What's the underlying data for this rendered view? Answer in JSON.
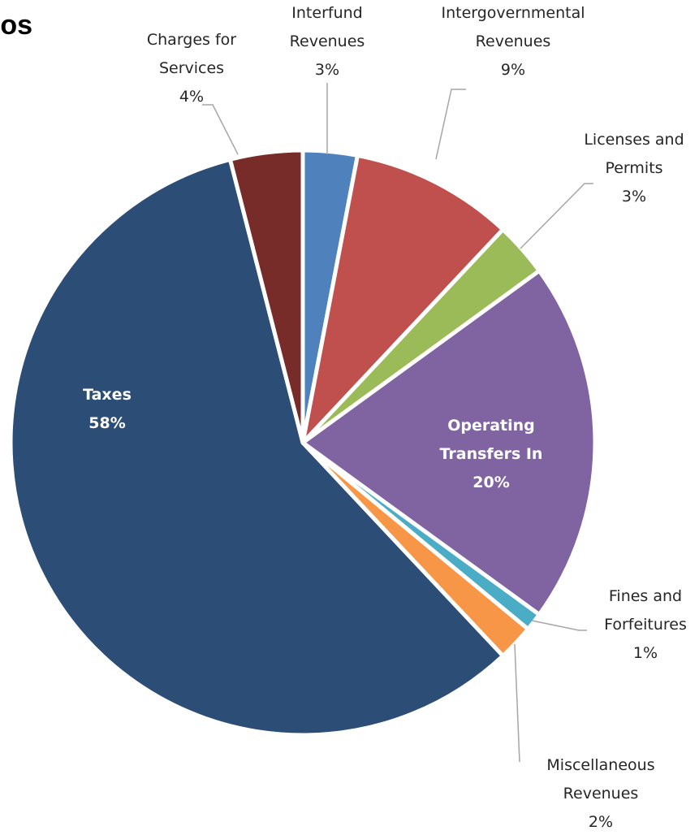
{
  "title": "os",
  "chart_data": {
    "type": "pie",
    "slices": [
      {
        "name": "Interfund Revenues",
        "lines": [
          "Interfund",
          "Revenues"
        ],
        "value": 3,
        "pct": "3%",
        "color": "#4F81BD"
      },
      {
        "name": "Intergovernmental Revenues",
        "lines": [
          "Intergovernmental",
          "Revenues"
        ],
        "value": 9,
        "pct": "9%",
        "color": "#C0504D"
      },
      {
        "name": "Licenses and Permits",
        "lines": [
          "Licenses and",
          "Permits"
        ],
        "value": 3,
        "pct": "3%",
        "color": "#9BBB59"
      },
      {
        "name": "Operating Transfers In",
        "lines": [
          "Operating",
          "Transfers In"
        ],
        "value": 20,
        "pct": "20%",
        "color": "#8064A2"
      },
      {
        "name": "Fines and Forfeitures",
        "lines": [
          "Fines and",
          "Forfeitures"
        ],
        "value": 1,
        "pct": "1%",
        "color": "#4BACC6"
      },
      {
        "name": "Miscellaneous Revenues",
        "lines": [
          "Miscellaneous",
          "Revenues"
        ],
        "value": 2,
        "pct": "2%",
        "color": "#F79646"
      },
      {
        "name": "Taxes",
        "lines": [
          "Taxes"
        ],
        "value": 58,
        "pct": "58%",
        "color": "#2C4D75"
      },
      {
        "name": "Charges for Services",
        "lines": [
          "Charges for",
          "Services"
        ],
        "value": 4,
        "pct": "4%",
        "color": "#772C2A"
      }
    ],
    "legend": "none"
  }
}
